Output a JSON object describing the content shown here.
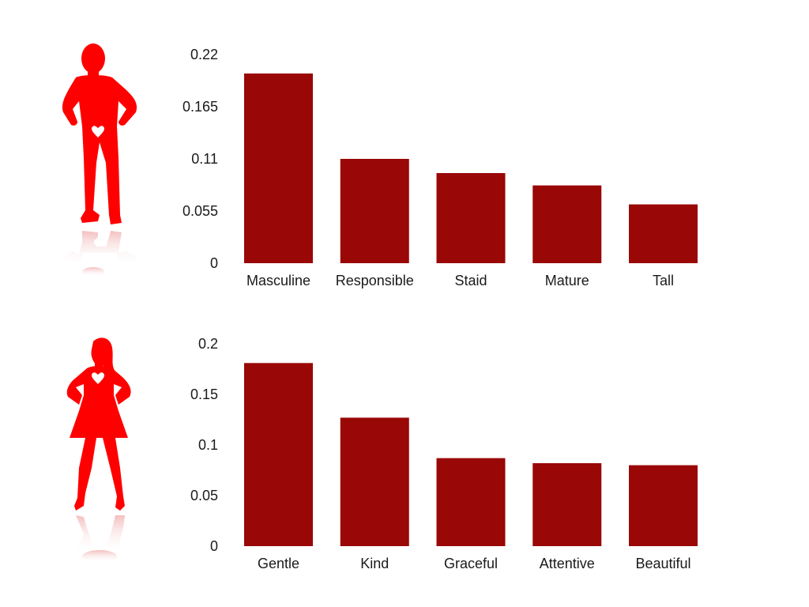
{
  "colors": {
    "bar": "#990707",
    "silhouette": "#ff0000",
    "reflection": "#f7c9c9"
  },
  "figures": [
    {
      "name": "male-silhouette-icon",
      "gender": "male"
    },
    {
      "name": "female-silhouette-icon",
      "gender": "female"
    }
  ],
  "chart_data": [
    {
      "type": "bar",
      "categories": [
        "Masculine",
        "Responsible",
        "Staid",
        "Mature",
        "Tall"
      ],
      "values": [
        0.2,
        0.11,
        0.095,
        0.082,
        0.062
      ],
      "yticks": [
        "0",
        "0.055",
        "0.11",
        "0.165",
        "0.22"
      ],
      "ylim": [
        0,
        0.22
      ],
      "grid": false
    },
    {
      "type": "bar",
      "categories": [
        "Gentle",
        "Kind",
        "Graceful",
        "Attentive",
        "Beautiful"
      ],
      "values": [
        0.181,
        0.127,
        0.087,
        0.082,
        0.08
      ],
      "yticks": [
        "0",
        "0.05",
        "0.1",
        "0.15",
        "0.2"
      ],
      "ylim": [
        0,
        0.2
      ],
      "grid": false
    }
  ]
}
